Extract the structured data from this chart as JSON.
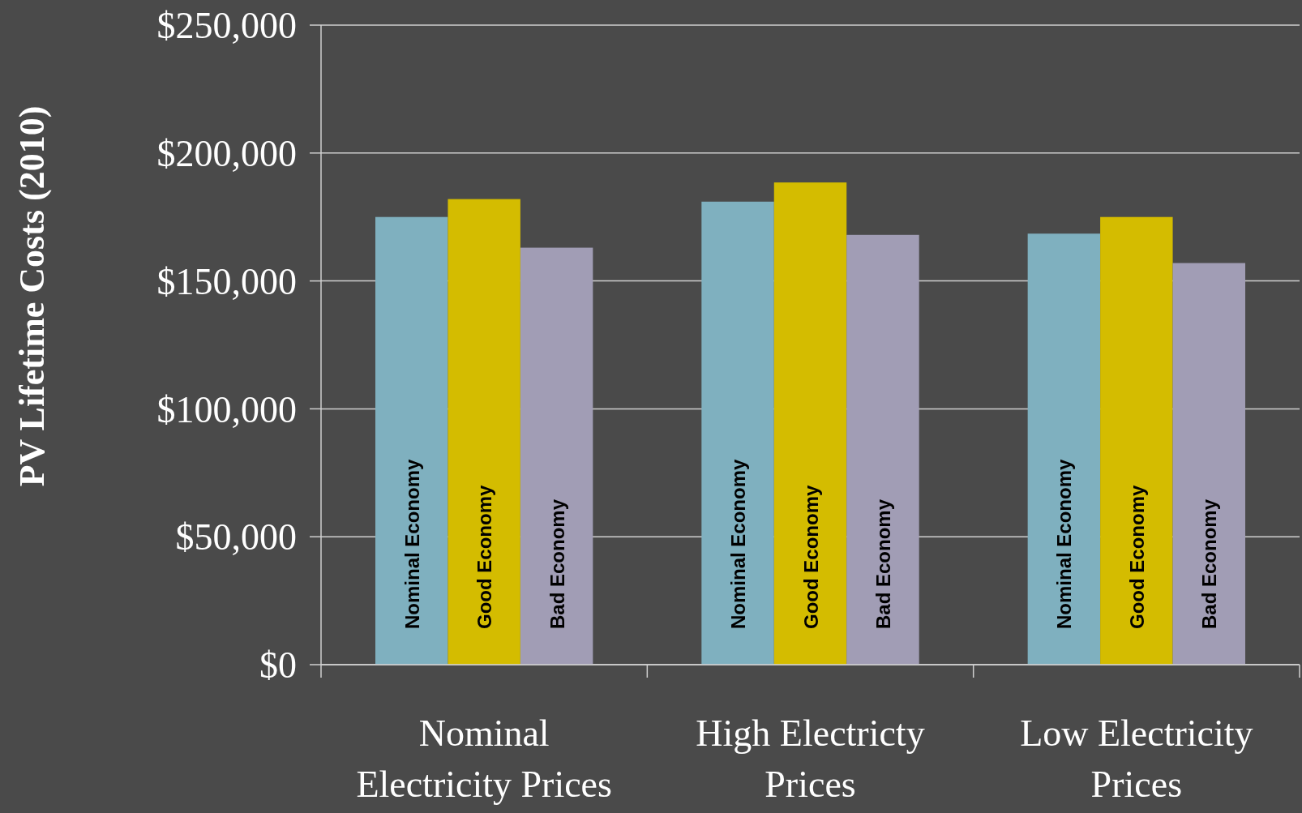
{
  "chart_data": {
    "type": "bar",
    "ylabel": "PV Lifetime Costs (2010)",
    "categories": [
      "Nominal Electricity Prices",
      "High Electricty Prices",
      "Low Electricity Prices"
    ],
    "series": [
      {
        "name": "Nominal Economy",
        "color": "#7fb0bf",
        "values": [
          175000,
          181000,
          168500
        ]
      },
      {
        "name": "Good Economy",
        "color": "#d4bc00",
        "values": [
          182000,
          188500,
          175000
        ]
      },
      {
        "name": "Bad Economy",
        "color": "#a19db5",
        "values": [
          163000,
          168000,
          157000
        ]
      }
    ],
    "ylim": [
      0,
      250000
    ],
    "yticks": [
      {
        "value": 0,
        "label": "$0"
      },
      {
        "value": 50000,
        "label": "$50,000"
      },
      {
        "value": 100000,
        "label": "$100,000"
      },
      {
        "value": 150000,
        "label": "$150,000"
      },
      {
        "value": 200000,
        "label": "$200,000"
      },
      {
        "value": 250000,
        "label": "$250,000"
      }
    ],
    "grid": "y",
    "legend": false
  }
}
